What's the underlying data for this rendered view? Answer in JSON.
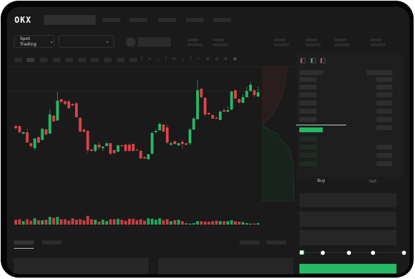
{
  "brand": {
    "logo": "OKX"
  },
  "header": {
    "market_selector": "Spot Trading",
    "pair_selector": ""
  },
  "colors": {
    "up": "#25b865",
    "down": "#d9434a",
    "background": "#1a1a1a"
  },
  "icons": [
    "chevron-down-icon",
    "orderbook-both-icon",
    "orderbook-bids-icon",
    "orderbook-asks-icon"
  ],
  "trade": {
    "tabs": [
      "Buy",
      "Sell"
    ],
    "active_tab": "Buy",
    "slider_value_percent": 0,
    "slider_stops": [
      0,
      25,
      50,
      75,
      100
    ]
  },
  "chart_data": {
    "type": "candlestick",
    "candles": [
      [
        68,
        65,
        70,
        63
      ],
      [
        68,
        59,
        69,
        58
      ],
      [
        57,
        59,
        60,
        56
      ],
      [
        59,
        44,
        64,
        44
      ],
      [
        43,
        39,
        44,
        37
      ],
      [
        36,
        50,
        50,
        33
      ],
      [
        52,
        44,
        53,
        43
      ],
      [
        48,
        64,
        65,
        47
      ],
      [
        63,
        56,
        64,
        54
      ],
      [
        57,
        85,
        93,
        57
      ],
      [
        83,
        75,
        84,
        74
      ],
      [
        76,
        105,
        118,
        76
      ],
      [
        107,
        103,
        108,
        102
      ],
      [
        104,
        100,
        106,
        98
      ],
      [
        104,
        94,
        107,
        93
      ],
      [
        100,
        98,
        101,
        97
      ],
      [
        101,
        81,
        103,
        80
      ],
      [
        80,
        60,
        81,
        59
      ],
      [
        63,
        60,
        64,
        58
      ],
      [
        61,
        33,
        62,
        29
      ],
      [
        34,
        32,
        35,
        31
      ],
      [
        32,
        41,
        42,
        30
      ],
      [
        41,
        37,
        45,
        34
      ],
      [
        36,
        38,
        39,
        32
      ],
      [
        39,
        43,
        45,
        39
      ],
      [
        43,
        28,
        44,
        26
      ],
      [
        33,
        29,
        34,
        27
      ],
      [
        31,
        40,
        41,
        30
      ],
      [
        40,
        39,
        41,
        38
      ],
      [
        41,
        32,
        42,
        30
      ],
      [
        41,
        32,
        42,
        30
      ],
      [
        42,
        32,
        43,
        30
      ],
      [
        34,
        33,
        35,
        32
      ],
      [
        32,
        21,
        33,
        20
      ],
      [
        23,
        21,
        24,
        20
      ],
      [
        20,
        27,
        28,
        18
      ],
      [
        28,
        58,
        60,
        26
      ],
      [
        59,
        61,
        64,
        58
      ],
      [
        62,
        71,
        74,
        61
      ],
      [
        70,
        60,
        71,
        59
      ],
      [
        66,
        44,
        70,
        42
      ],
      [
        41,
        43,
        45,
        39
      ],
      [
        46,
        42,
        47,
        41
      ],
      [
        40,
        43,
        44,
        39
      ],
      [
        45,
        42,
        48,
        35
      ],
      [
        43,
        41,
        44,
        40
      ],
      [
        43,
        63,
        66,
        40
      ],
      [
        63,
        79,
        81,
        62
      ],
      [
        78,
        120,
        135,
        77
      ],
      [
        122,
        110,
        124,
        108
      ],
      [
        109,
        85,
        110,
        82
      ],
      [
        87,
        85,
        88,
        84
      ],
      [
        84,
        79,
        85,
        78
      ],
      [
        80,
        79,
        82,
        78
      ],
      [
        77,
        89,
        91,
        76
      ],
      [
        91,
        89,
        94,
        88
      ],
      [
        89,
        91,
        96,
        88
      ],
      [
        92,
        118,
        119,
        91
      ],
      [
        120,
        108,
        121,
        107
      ],
      [
        107,
        102,
        108,
        101
      ],
      [
        102,
        110,
        114,
        101
      ],
      [
        110,
        119,
        125,
        109
      ],
      [
        119,
        128,
        132,
        118
      ],
      [
        120,
        113,
        121,
        110
      ],
      [
        111,
        117,
        125,
        110
      ]
    ],
    "volumes": [
      10,
      11,
      7,
      11,
      8,
      13,
      9,
      9,
      10,
      16,
      14,
      16,
      11,
      11,
      8,
      13,
      10,
      11,
      9,
      18,
      11,
      10,
      6,
      10,
      7,
      11,
      11,
      12,
      10,
      8,
      12,
      12,
      9,
      11,
      8,
      13,
      12,
      10,
      13,
      9,
      11,
      7,
      9,
      10,
      7,
      3,
      2,
      3,
      7,
      7,
      6,
      6,
      7,
      8,
      7,
      7,
      7,
      9,
      7,
      6,
      5,
      3,
      2,
      2,
      3
    ]
  }
}
